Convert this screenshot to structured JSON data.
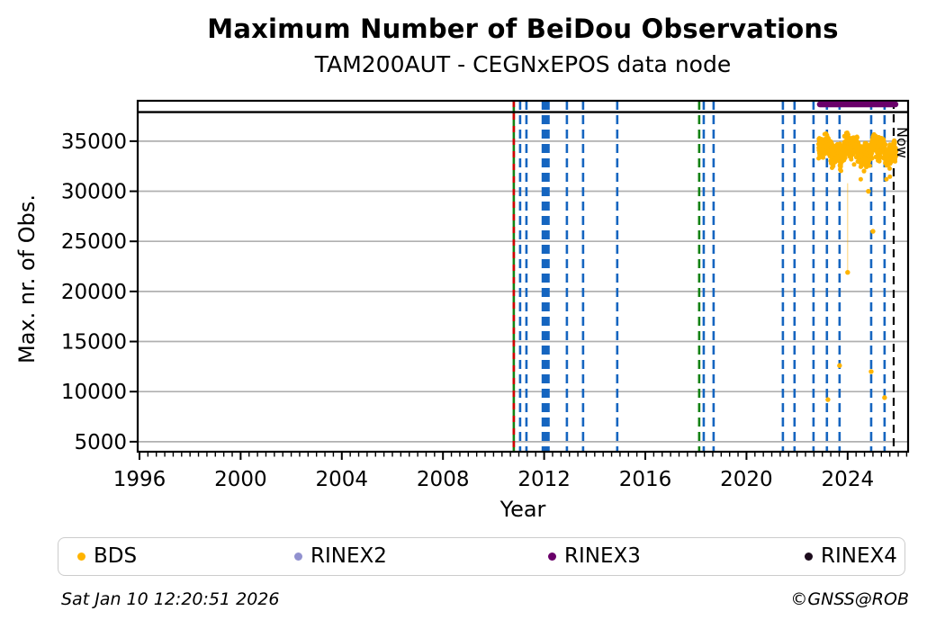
{
  "chart_data": {
    "type": "scatter",
    "title": "Maximum Number of BeiDou Observations",
    "subtitle": "TAM200AUT - CEGNxEPOS data node",
    "xlabel": "Year",
    "ylabel": "Max. nr. of Obs.",
    "xlim": [
      1995.93,
      2026.39
    ],
    "ylim": [
      4000,
      39030
    ],
    "xticks": [
      1996,
      2000,
      2004,
      2008,
      2012,
      2016,
      2020,
      2024
    ],
    "yticks": [
      5000,
      10000,
      15000,
      20000,
      25000,
      30000,
      35000
    ],
    "x_minor_interval_years": 0.3333,
    "grid": "horizontal-gray-solid",
    "legend_position": "bottom",
    "colors": {
      "bds": "#ffb400",
      "blue_event": "#1565c0",
      "green_event": "#148214",
      "red_event": "#d10000",
      "rinex3_bar": "#6a006a",
      "grid": "#b0b0b0",
      "now_line": "#000000"
    },
    "top_separator_value": 37900,
    "events": [
      {
        "year": 2010.8,
        "color": "green_red"
      },
      {
        "year": 2011.05,
        "color": "blue"
      },
      {
        "year": 2011.3,
        "color": "blue"
      },
      {
        "year": 2012.06,
        "color": "blue",
        "width_years": 0.32
      },
      {
        "year": 2012.9,
        "color": "blue"
      },
      {
        "year": 2013.54,
        "color": "blue"
      },
      {
        "year": 2014.89,
        "color": "blue"
      },
      {
        "year": 2018.13,
        "color": "green"
      },
      {
        "year": 2018.31,
        "color": "blue"
      },
      {
        "year": 2018.7,
        "color": "blue"
      },
      {
        "year": 2021.44,
        "color": "blue"
      },
      {
        "year": 2021.9,
        "color": "blue"
      },
      {
        "year": 2022.65,
        "color": "blue"
      },
      {
        "year": 2023.18,
        "color": "blue"
      },
      {
        "year": 2023.68,
        "color": "blue"
      },
      {
        "year": 2024.93,
        "color": "blue"
      },
      {
        "year": 2025.46,
        "color": "blue"
      }
    ],
    "now_line": {
      "year": 2025.82,
      "label": "Now"
    },
    "rinex3_bar": {
      "year_start": 2022.9,
      "year_end": 2025.89
    },
    "bds_cluster": {
      "year_start": 2022.85,
      "year_end": 2025.92,
      "value_center": 34100,
      "value_min": 31200,
      "value_max": 36200,
      "n_points": 900
    },
    "bds_outliers": [
      [
        2024.82,
        30000
      ],
      [
        2025.0,
        26000
      ],
      [
        2024.0,
        21900
      ],
      [
        2023.68,
        12600
      ],
      [
        2024.93,
        12000
      ],
      [
        2023.22,
        9200
      ],
      [
        2025.46,
        9400
      ]
    ],
    "bds_dropline": {
      "year": 2024.0,
      "value_from": 30800,
      "value_to": 21900
    }
  },
  "legend": {
    "items": [
      {
        "label": "BDS",
        "color": "#ffb400"
      },
      {
        "label": "RINEX2",
        "color": "#9191cf"
      },
      {
        "label": "RINEX3",
        "color": "#6a006a"
      },
      {
        "label": "RINEX4",
        "color": "#1c0b1c"
      }
    ]
  },
  "footer": {
    "timestamp": "Sat Jan 10 12:20:51 2026",
    "credit": "©GNSS@ROB"
  }
}
